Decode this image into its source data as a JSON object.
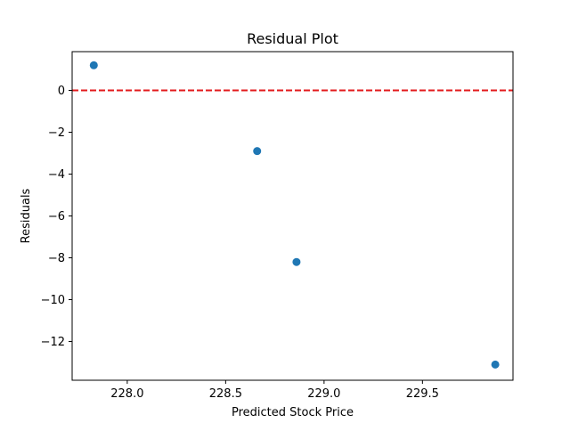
{
  "chart_data": {
    "type": "scatter",
    "title": "Residual Plot",
    "xlabel": "Predicted Stock Price",
    "ylabel": "Residuals",
    "xlim": [
      227.72,
      229.96
    ],
    "ylim": [
      -13.85,
      1.85
    ],
    "xticks": [
      {
        "value": 228.0,
        "label": "228.0"
      },
      {
        "value": 228.5,
        "label": "228.5"
      },
      {
        "value": 229.0,
        "label": "229.0"
      },
      {
        "value": 229.5,
        "label": "229.5"
      }
    ],
    "yticks": [
      {
        "value": 0,
        "label": "0"
      },
      {
        "value": -2,
        "label": "−2"
      },
      {
        "value": -4,
        "label": "−4"
      },
      {
        "value": -6,
        "label": "−6"
      },
      {
        "value": -8,
        "label": "−8"
      },
      {
        "value": -10,
        "label": "−10"
      },
      {
        "value": -12,
        "label": "−12"
      }
    ],
    "points": [
      {
        "x": 227.83,
        "y": 1.2
      },
      {
        "x": 228.66,
        "y": -2.9
      },
      {
        "x": 228.86,
        "y": -8.2
      },
      {
        "x": 229.87,
        "y": -13.1
      }
    ],
    "reference_line": {
      "y": 0,
      "style": "dashed",
      "color": "#e31a1c"
    },
    "point_color": "#1f77b4",
    "grid": false,
    "legend": false
  }
}
